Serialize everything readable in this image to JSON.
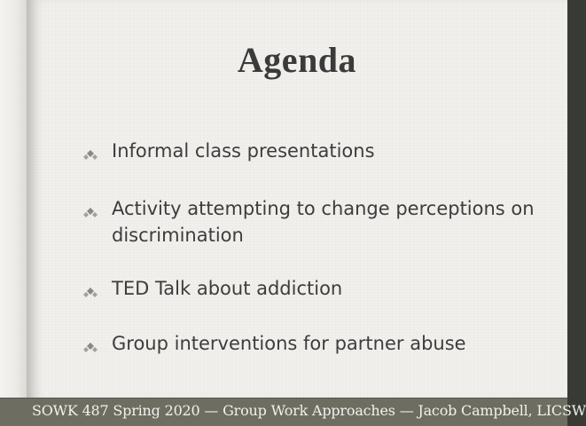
{
  "slide": {
    "title": "Agenda",
    "bullets": [
      {
        "text": "Informal class presentations"
      },
      {
        "text": "Activity attempting to change perceptions on discrimination"
      },
      {
        "text": "TED Talk about addiction"
      },
      {
        "text": "Group interventions for partner abuse"
      }
    ],
    "bullet_icon": "diamond-cluster-icon"
  },
  "footer": {
    "text": "SOWK 487 Spring 2020 — Group Work Approaches — Jacob Campbell, LICSW"
  },
  "colors": {
    "page": "#f1f0ec",
    "text": "#3d3d3d",
    "footer_band": "#6d6d62",
    "footer_text": "#f2f2ec"
  }
}
